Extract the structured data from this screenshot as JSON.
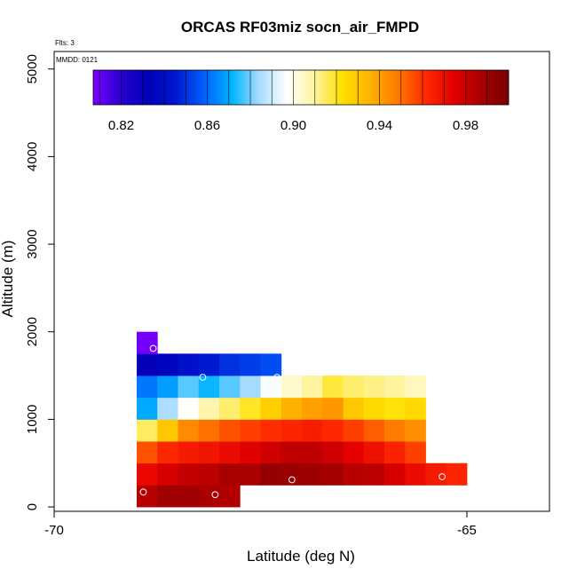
{
  "chart_data": {
    "type": "heatmap",
    "title": "ORCAS RF03miz socn_air_FMPD",
    "info_flts": "Flts: 3",
    "info_mmdd": "MMDD: 0121",
    "xlabel": "Latitude (deg N)",
    "ylabel": "Altitude (m)",
    "xlim": [
      -70,
      -64
    ],
    "ylim": [
      -50,
      5200
    ],
    "xticks": [
      -70,
      -65
    ],
    "yticks": [
      0,
      1000,
      2000,
      3000,
      4000,
      5000
    ],
    "cell_width_deg": 0.25,
    "cell_height_m": 250,
    "colorbar": {
      "range": [
        0.807,
        1.0
      ],
      "ticks": [
        "0.82",
        "0.86",
        "0.90",
        "0.94",
        "0.98"
      ],
      "tick_values": [
        0.82,
        0.86,
        0.9,
        0.94,
        0.98
      ],
      "colormap": [
        "#7a00ff",
        "#2a00d0",
        "#0000b8",
        "#0018d0",
        "#0060ff",
        "#00b4ff",
        "#a8dcff",
        "#ffffff",
        "#fff3a0",
        "#ffe100",
        "#ffb200",
        "#ff7a00",
        "#ff2a00",
        "#e40000",
        "#a80000",
        "#7a0000"
      ]
    },
    "rows": [
      {
        "alt_bottom": 0,
        "lat_start": -69.0,
        "values": [
          0.984,
          0.989,
          0.989,
          0.987,
          0.985
        ]
      },
      {
        "alt_bottom": 250,
        "lat_start": -69.0,
        "values": [
          0.972,
          0.977,
          0.981,
          0.983,
          0.987,
          0.987,
          0.992,
          0.991,
          0.99,
          0.988,
          0.984,
          0.983,
          0.977,
          0.971,
          0.966,
          0.963
        ]
      },
      {
        "alt_bottom": 500,
        "lat_start": -69.0,
        "values": [
          0.955,
          0.962,
          0.966,
          0.968,
          0.971,
          0.975,
          0.979,
          0.982,
          0.982,
          0.979,
          0.974,
          0.969,
          0.964,
          0.958
        ]
      },
      {
        "alt_bottom": 750,
        "lat_start": -69.0,
        "values": [
          0.915,
          0.93,
          0.945,
          0.95,
          0.955,
          0.958,
          0.961,
          0.963,
          0.965,
          0.962,
          0.958,
          0.953,
          0.948,
          0.944
        ]
      },
      {
        "alt_bottom": 1000,
        "lat_start": -69.0,
        "values": [
          0.87,
          0.885,
          0.898,
          0.908,
          0.914,
          0.92,
          0.928,
          0.936,
          0.94,
          0.942,
          0.93,
          0.925,
          0.922,
          0.925
        ]
      },
      {
        "alt_bottom": 1250,
        "lat_start": -69.0,
        "values": [
          0.862,
          0.868,
          0.878,
          0.872,
          0.878,
          0.884,
          0.896,
          0.904,
          0.91,
          0.918,
          0.914,
          0.912,
          0.91,
          0.906
        ]
      },
      {
        "alt_bottom": 1500,
        "lat_start": -69.0,
        "values": [
          0.831,
          0.836,
          0.842,
          0.846,
          0.85,
          0.852,
          0.855
        ]
      },
      {
        "alt_bottom": 1750,
        "lat_start": -69.0,
        "values": [
          0.808
        ]
      }
    ],
    "markers": [
      {
        "lat": -68.92,
        "alt": 170
      },
      {
        "lat": -68.05,
        "alt": 140
      },
      {
        "lat": -67.12,
        "alt": 310
      },
      {
        "lat": -65.3,
        "alt": 345
      },
      {
        "lat": -68.2,
        "alt": 1480
      },
      {
        "lat": -67.3,
        "alt": 1480
      },
      {
        "lat": -68.8,
        "alt": 1810
      }
    ]
  }
}
